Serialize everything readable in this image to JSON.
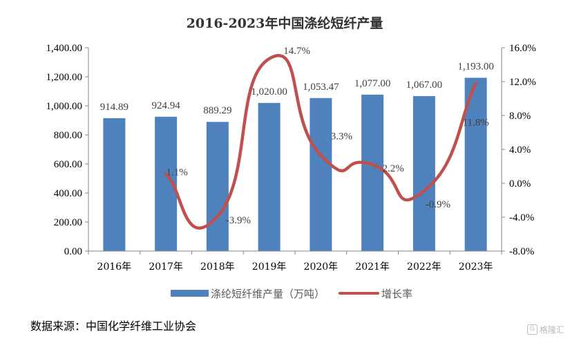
{
  "chart_data": {
    "type": "bar+line",
    "title": "2016-2023年中国涤纶短纤产量",
    "categories": [
      "2016年",
      "2017年",
      "2018年",
      "2019年",
      "2020年",
      "2021年",
      "2022年",
      "2023年"
    ],
    "series": [
      {
        "name": "涤纶短纤维产量（万吨）",
        "type": "bar",
        "axis": "left",
        "color": "#4F81BD",
        "values": [
          914.89,
          924.94,
          889.29,
          1020.0,
          1053.47,
          1077.0,
          1067.0,
          1193.0
        ],
        "labels": [
          "914.89",
          "924.94",
          "889.29",
          "1,020.00",
          "1,053.47",
          "1,077.00",
          "1,067.00",
          "1,193.00"
        ]
      },
      {
        "name": "增长率",
        "type": "line",
        "axis": "right",
        "color": "#C0504D",
        "values": [
          null,
          1.1,
          -3.9,
          14.7,
          3.3,
          2.2,
          -0.9,
          11.8
        ],
        "labels": [
          "",
          "1.1%",
          "-3.9%",
          "14.7%",
          "3.3%",
          "2.2%",
          "-0.9%",
          "11.8%"
        ]
      }
    ],
    "y_left": {
      "lim": [
        0,
        1400
      ],
      "ticks": [
        "0.00",
        "200.00",
        "400.00",
        "600.00",
        "800.00",
        "1,000.00",
        "1,200.00",
        "1,400.00"
      ]
    },
    "y_right": {
      "lim": [
        -8,
        16
      ],
      "ticks": [
        "-8.0%",
        "-4.0%",
        "0.0%",
        "4.0%",
        "8.0%",
        "12.0%",
        "16.0%"
      ]
    },
    "grid": false,
    "legend": "bottom"
  },
  "source": "数据来源：中国化学纤维工业协会",
  "watermark": "格隆汇"
}
